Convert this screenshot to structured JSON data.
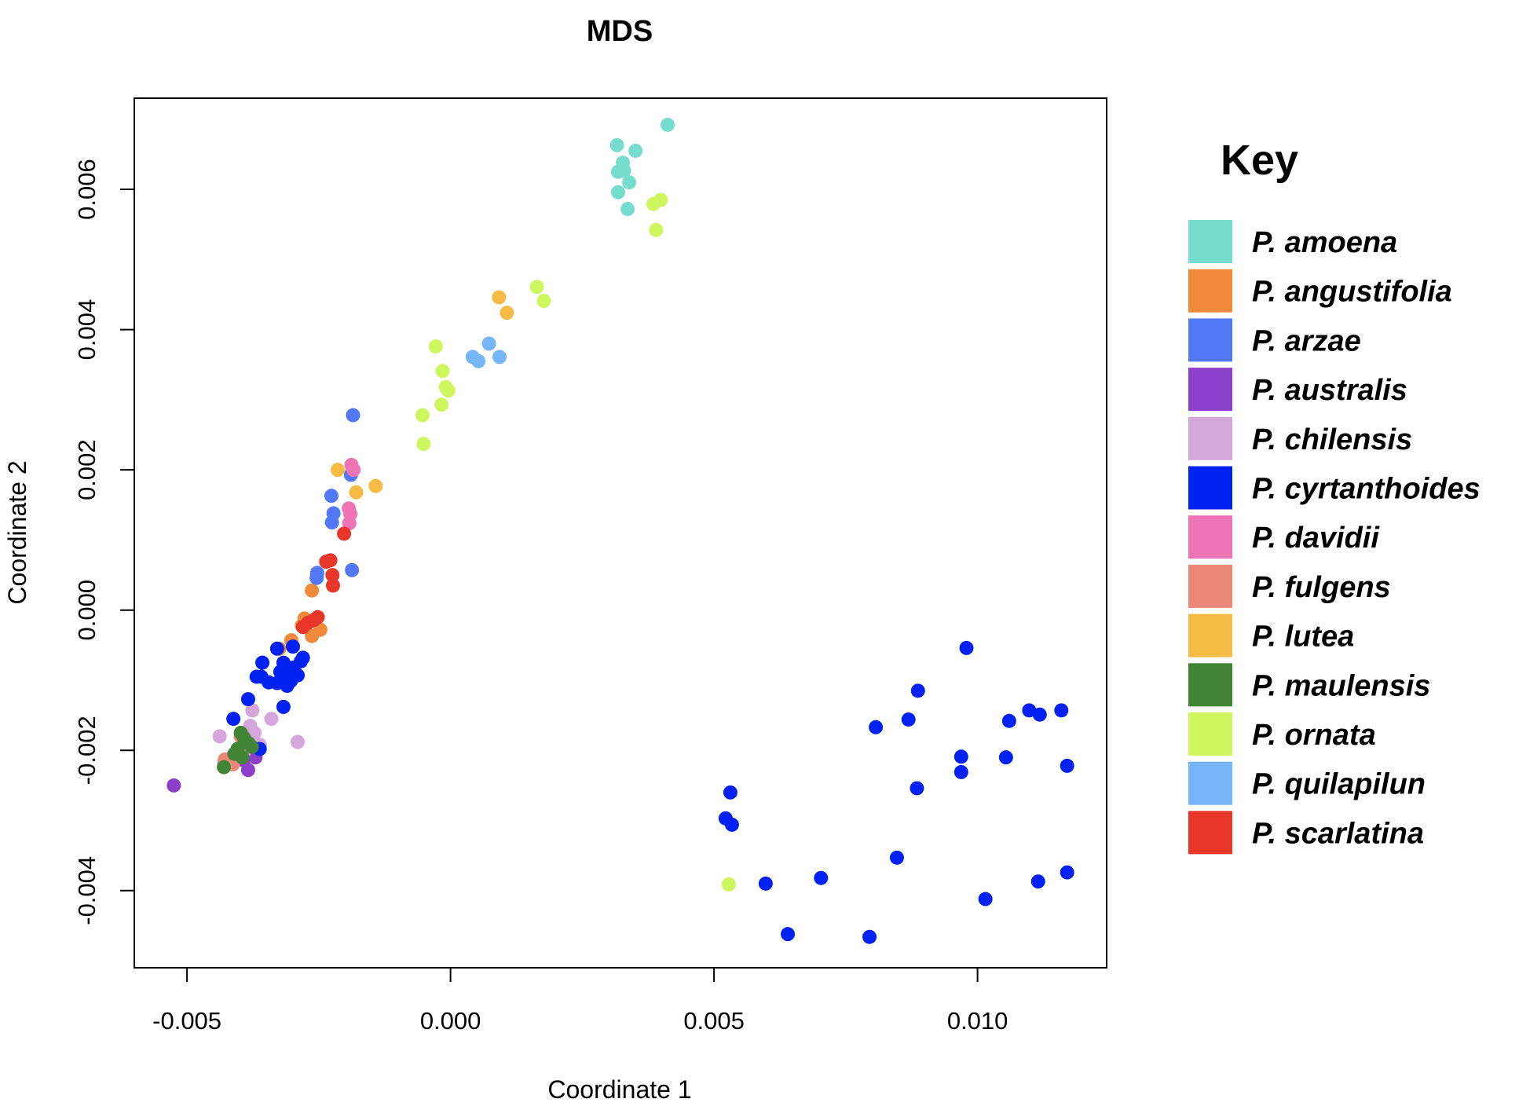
{
  "chart_data": {
    "type": "scatter",
    "title": "MDS",
    "xlabel": "Coordinate 1",
    "ylabel": "Coordinate 2",
    "xlim": [
      -0.006,
      0.01245
    ],
    "ylim": [
      -0.0051,
      0.0073
    ],
    "xticks": [
      -0.005,
      0.0,
      0.005,
      0.01
    ],
    "xtick_labels": [
      "-0.005",
      "0.000",
      "0.005",
      "0.010"
    ],
    "yticks": [
      -0.004,
      -0.002,
      0.0,
      0.002,
      0.004,
      0.006
    ],
    "ytick_labels": [
      "-0.004",
      "-0.002",
      "0.000",
      "0.002",
      "0.004",
      "0.006"
    ],
    "grid": false,
    "legend": {
      "title": "Key",
      "position": "right"
    },
    "series": [
      {
        "name": "P. amoena",
        "color": "#76DCCD",
        "points": [
          [
            0.00316,
            0.00663
          ],
          [
            0.00327,
            0.00638
          ],
          [
            0.00318,
            0.00625
          ],
          [
            0.00329,
            0.00627
          ],
          [
            0.00351,
            0.00655
          ],
          [
            0.00412,
            0.00692
          ],
          [
            0.00339,
            0.0061
          ],
          [
            0.00318,
            0.00596
          ],
          [
            0.00336,
            0.00572
          ]
        ]
      },
      {
        "name": "P. angustifolia",
        "color": "#F0893B",
        "points": [
          [
            -0.00263,
            0.00028
          ],
          [
            -0.00277,
            -0.00012
          ],
          [
            -0.00282,
            -0.00022
          ],
          [
            -0.00247,
            -0.00028
          ],
          [
            -0.00263,
            -0.00037
          ],
          [
            -0.00302,
            -0.00043
          ],
          [
            -0.00325,
            -0.00055
          ]
        ]
      },
      {
        "name": "P. arzae",
        "color": "#5278F6",
        "points": [
          [
            -0.00185,
            0.00278
          ],
          [
            -0.00189,
            0.00193
          ],
          [
            -0.00226,
            0.00163
          ],
          [
            -0.00222,
            0.00138
          ],
          [
            -0.00225,
            0.00125
          ],
          [
            -0.00187,
            0.00057
          ],
          [
            -0.00253,
            0.00053
          ],
          [
            -0.00254,
            0.00046
          ]
        ]
      },
      {
        "name": "P. australis",
        "color": "#8B3FCA",
        "points": [
          [
            -0.00525,
            -0.0025
          ],
          [
            -0.00409,
            -0.00215
          ],
          [
            -0.00384,
            -0.00228
          ],
          [
            -0.00393,
            -0.00214
          ],
          [
            -0.0037,
            -0.0021
          ],
          [
            -0.00399,
            -0.00205
          ],
          [
            -0.00378,
            -0.00205
          ]
        ]
      },
      {
        "name": "P. chilensis",
        "color": "#D4A6DC",
        "points": [
          [
            -0.00438,
            -0.0018
          ],
          [
            -0.00376,
            -0.00143
          ],
          [
            -0.0038,
            -0.00165
          ],
          [
            -0.0034,
            -0.00155
          ],
          [
            -0.00372,
            -0.00175
          ],
          [
            -0.0029,
            -0.00188
          ],
          [
            -0.00362,
            -0.00192
          ],
          [
            -0.0039,
            -0.002
          ],
          [
            -0.00415,
            -0.0021
          ],
          [
            -0.0043,
            -0.00218
          ]
        ]
      },
      {
        "name": "P. cyrtanthoides",
        "color": "#0022F0",
        "points": [
          [
            -0.00329,
            -0.00055
          ],
          [
            -0.00317,
            -0.00075
          ],
          [
            -0.00299,
            -0.00052
          ],
          [
            -0.0028,
            -0.00068
          ],
          [
            -0.00284,
            -0.00073
          ],
          [
            -0.00298,
            -0.00082
          ],
          [
            -0.00323,
            -0.00088
          ],
          [
            -0.00313,
            -0.00097
          ],
          [
            -0.0029,
            -0.00093
          ],
          [
            -0.00303,
            -0.00101
          ],
          [
            -0.00359,
            -0.00095
          ],
          [
            -0.00345,
            -0.00103
          ],
          [
            -0.00329,
            -0.00104
          ],
          [
            -0.0031,
            -0.00108
          ],
          [
            -0.00357,
            -0.00075
          ],
          [
            -0.00368,
            -0.00095
          ],
          [
            -0.00317,
            -0.00138
          ],
          [
            -0.00384,
            -0.00127
          ],
          [
            -0.00412,
            -0.00155
          ],
          [
            -0.00362,
            -0.00198
          ],
          [
            0.00979,
            -0.00054
          ],
          [
            0.00887,
            -0.00115
          ],
          [
            0.00807,
            -0.00167
          ],
          [
            0.00869,
            -0.00156
          ],
          [
            0.00969,
            -0.00209
          ],
          [
            0.00969,
            -0.00231
          ],
          [
            0.01054,
            -0.0021
          ],
          [
            0.0106,
            -0.00158
          ],
          [
            0.01098,
            -0.00143
          ],
          [
            0.01118,
            -0.00149
          ],
          [
            0.01159,
            -0.00143
          ],
          [
            0.0117,
            -0.00222
          ],
          [
            0.00885,
            -0.00254
          ],
          [
            0.00531,
            -0.0026
          ],
          [
            0.00522,
            -0.00297
          ],
          [
            0.00534,
            -0.00306
          ],
          [
            0.00847,
            -0.00353
          ],
          [
            0.00598,
            -0.0039
          ],
          [
            0.00703,
            -0.00382
          ],
          [
            0.0064,
            -0.00462
          ],
          [
            0.00795,
            -0.00466
          ],
          [
            0.01015,
            -0.00412
          ],
          [
            0.01115,
            -0.00387
          ],
          [
            0.0117,
            -0.00374
          ]
        ]
      },
      {
        "name": "P. davidii",
        "color": "#EF74B5",
        "points": [
          [
            -0.00188,
            0.00207
          ],
          [
            -0.00184,
            0.002
          ],
          [
            -0.00193,
            0.00145
          ],
          [
            -0.0019,
            0.00137
          ],
          [
            -0.00192,
            0.00124
          ]
        ]
      },
      {
        "name": "P. fulgens",
        "color": "#EB8878",
        "points": [
          [
            -0.00428,
            -0.00213
          ],
          [
            -0.00398,
            -0.0018
          ],
          [
            -0.00382,
            -0.00195
          ],
          [
            -0.00413,
            -0.0022
          ]
        ]
      },
      {
        "name": "P. lutea",
        "color": "#F6BB45",
        "points": [
          [
            -0.00214,
            0.002
          ],
          [
            -0.00142,
            0.00177
          ],
          [
            -0.00179,
            0.00168
          ],
          [
            0.00092,
            0.00446
          ],
          [
            0.00107,
            0.00424
          ]
        ]
      },
      {
        "name": "P. maulensis",
        "color": "#418436",
        "points": [
          [
            -0.00398,
            -0.00175
          ],
          [
            -0.00392,
            -0.00182
          ],
          [
            -0.00383,
            -0.0019
          ],
          [
            -0.00377,
            -0.00195
          ],
          [
            -0.00404,
            -0.00198
          ],
          [
            -0.0041,
            -0.00205
          ],
          [
            -0.00395,
            -0.0021
          ],
          [
            -0.0043,
            -0.00224
          ]
        ]
      },
      {
        "name": "P. ornata",
        "color": "#CDF65F",
        "points": [
          [
            0.00164,
            0.00461
          ],
          [
            0.00177,
            0.00441
          ],
          [
            -0.00028,
            0.00376
          ],
          [
            -0.00015,
            0.00341
          ],
          [
            -9e-05,
            0.00318
          ],
          [
            -4e-05,
            0.00313
          ],
          [
            -0.00017,
            0.00293
          ],
          [
            -0.00053,
            0.00278
          ],
          [
            -0.00051,
            0.00237
          ],
          [
            0.00385,
            0.00579
          ],
          [
            0.00399,
            0.00585
          ],
          [
            0.0039,
            0.00542
          ],
          [
            0.00528,
            -0.00391
          ]
        ]
      },
      {
        "name": "P. quilapilun",
        "color": "#75B5F8",
        "points": [
          [
            0.00042,
            0.00361
          ],
          [
            0.00073,
            0.0038
          ],
          [
            0.00093,
            0.00361
          ],
          [
            0.00053,
            0.00355
          ]
        ]
      },
      {
        "name": "P. scarlatina",
        "color": "#E8372A",
        "points": [
          [
            -0.00228,
            0.00071
          ],
          [
            -0.00236,
            0.00069
          ],
          [
            -0.00224,
            0.0005
          ],
          [
            -0.00223,
            0.00035
          ],
          [
            -0.00202,
            0.00109
          ],
          [
            -0.00252,
            -0.0001
          ],
          [
            -0.00259,
            -0.00014
          ],
          [
            -0.0027,
            -0.00018
          ],
          [
            -0.0028,
            -0.00024
          ]
        ]
      }
    ]
  }
}
